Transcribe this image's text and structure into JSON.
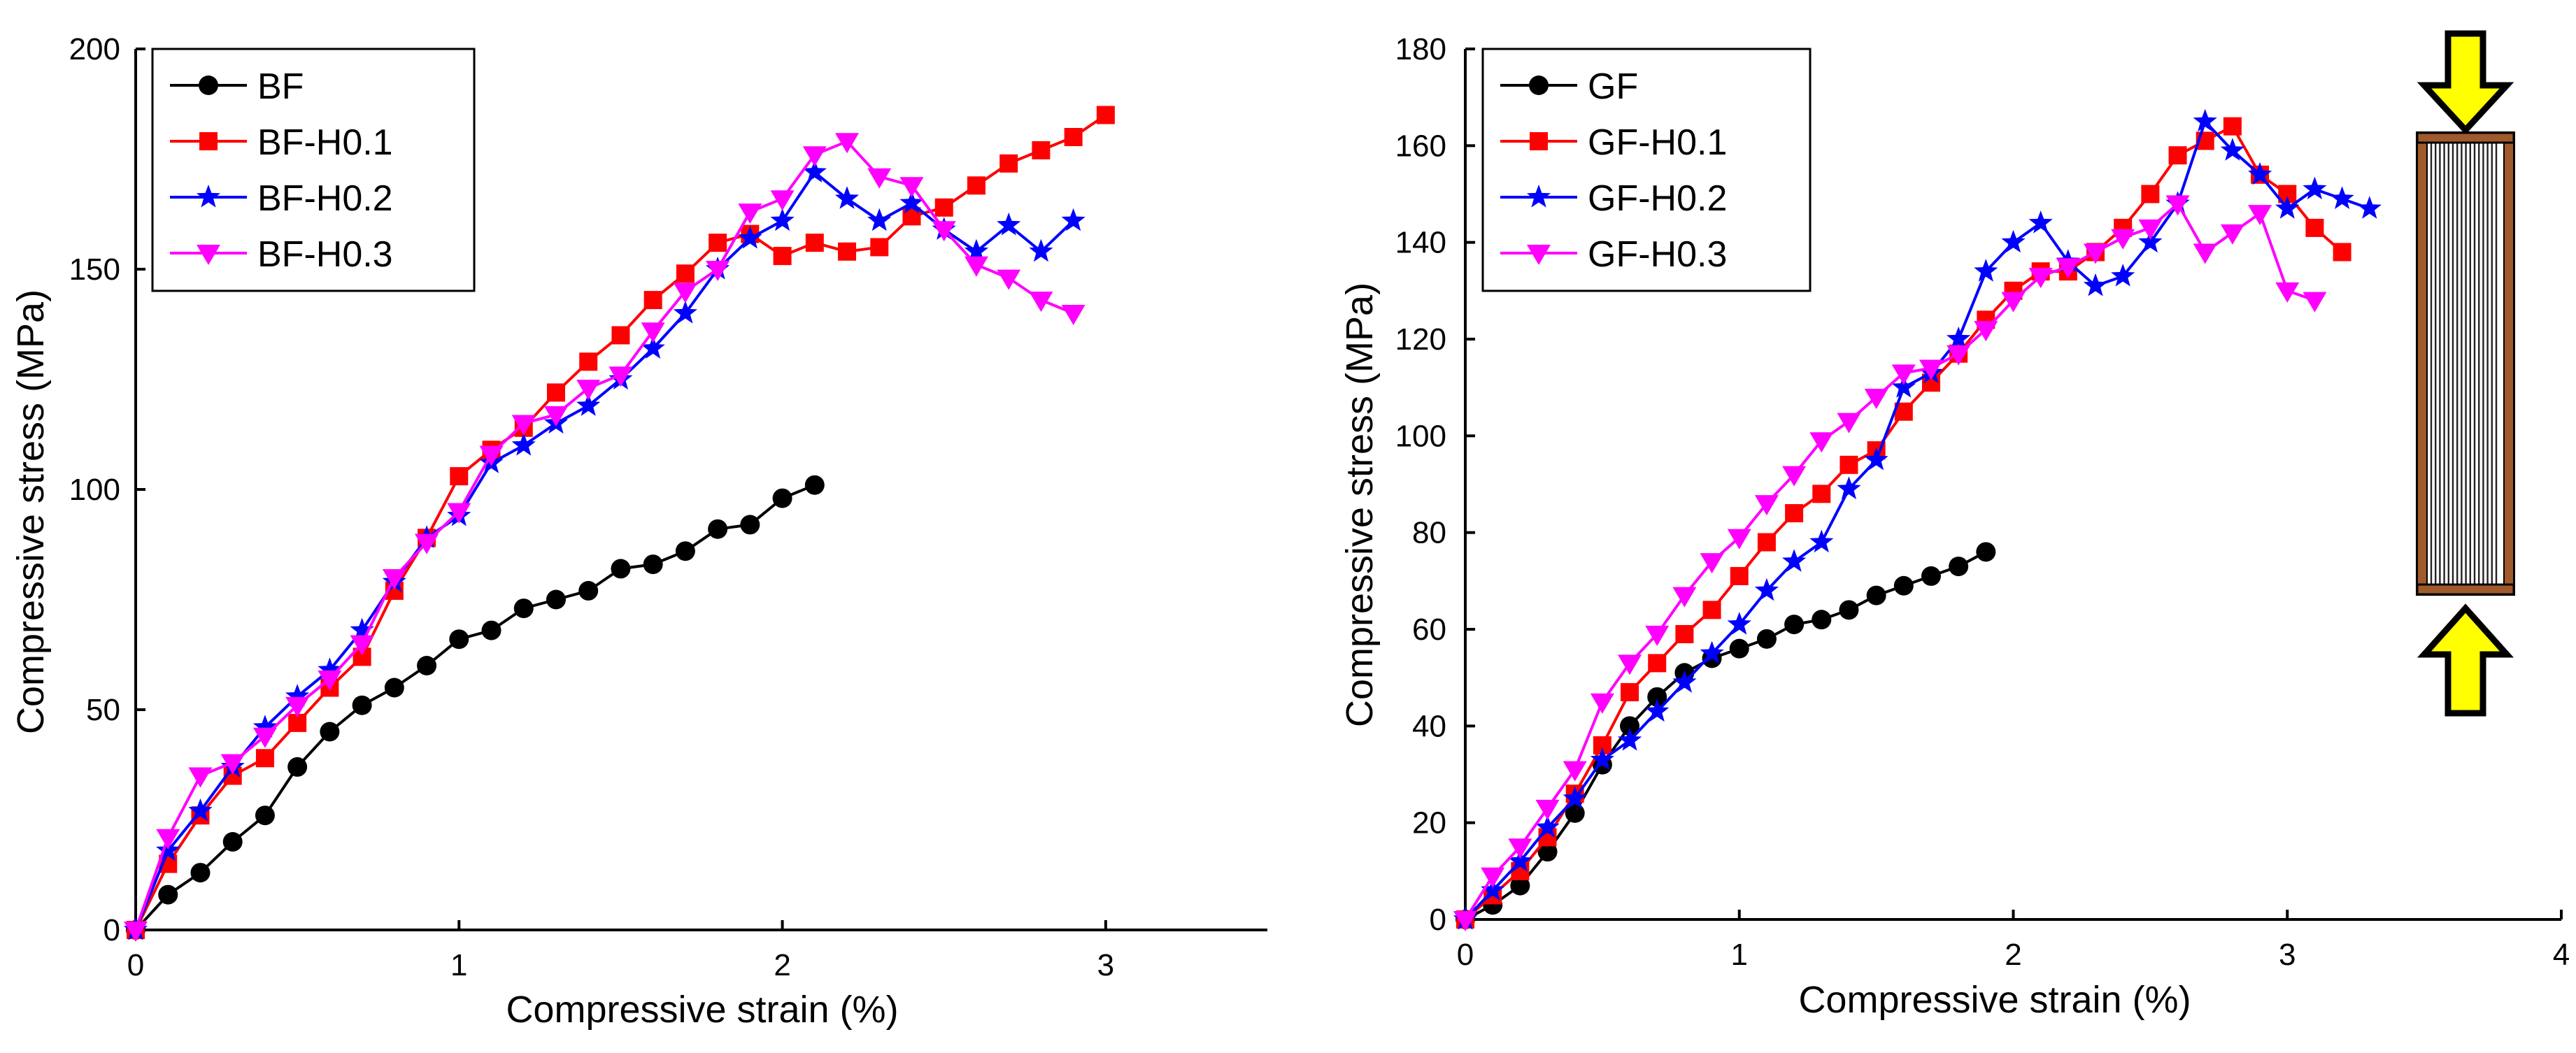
{
  "chart_data": [
    {
      "type": "line",
      "title": "",
      "xlabel": "Compressive strain (%)",
      "ylabel": "Compressive stress (MPa)",
      "xlim": [
        0,
        3.5
      ],
      "ylim": [
        0,
        200
      ],
      "xticks": [
        0,
        1,
        2,
        3
      ],
      "yticks": [
        0,
        50,
        100,
        150,
        200
      ],
      "xtick_labels": [
        "0",
        "1",
        "2",
        "3"
      ],
      "ytick_labels": [
        "0",
        "50",
        "100",
        "150",
        "200"
      ],
      "legend_position": "top-left",
      "series": [
        {
          "name": "BF",
          "color": "#000000",
          "marker": "circle",
          "x": [
            0,
            0.1,
            0.2,
            0.3,
            0.4,
            0.5,
            0.6,
            0.7,
            0.8,
            0.9,
            1.0,
            1.1,
            1.2,
            1.3,
            1.4,
            1.5,
            1.6,
            1.7,
            1.8,
            1.9,
            2.0,
            2.1
          ],
          "y": [
            0,
            8,
            13,
            20,
            26,
            37,
            45,
            51,
            55,
            60,
            66,
            68,
            73,
            75,
            77,
            82,
            83,
            86,
            91,
            92,
            98,
            101
          ]
        },
        {
          "name": "BF-H0.1",
          "color": "#ff0000",
          "marker": "square",
          "x": [
            0,
            0.1,
            0.2,
            0.3,
            0.4,
            0.5,
            0.6,
            0.7,
            0.8,
            0.9,
            1.0,
            1.1,
            1.2,
            1.3,
            1.4,
            1.5,
            1.6,
            1.7,
            1.8,
            1.9,
            2.0,
            2.1,
            2.2,
            2.3,
            2.4,
            2.5,
            2.6,
            2.7,
            2.8,
            2.9,
            3.0
          ],
          "y": [
            0,
            15,
            26,
            35,
            39,
            47,
            55,
            62,
            77,
            89,
            103,
            109,
            114,
            122,
            129,
            135,
            143,
            149,
            156,
            158,
            153,
            156,
            154,
            155,
            162,
            164,
            169,
            174,
            177,
            180,
            185
          ]
        },
        {
          "name": "BF-H0.2",
          "color": "#0000ff",
          "marker": "star",
          "x": [
            0,
            0.1,
            0.2,
            0.3,
            0.4,
            0.5,
            0.6,
            0.7,
            0.8,
            0.9,
            1.0,
            1.1,
            1.2,
            1.3,
            1.4,
            1.5,
            1.6,
            1.7,
            1.8,
            1.9,
            2.0,
            2.1,
            2.2,
            2.3,
            2.4,
            2.5,
            2.6,
            2.7,
            2.8,
            2.9
          ],
          "y": [
            0,
            18,
            27,
            37,
            46,
            53,
            59,
            68,
            79,
            89,
            94,
            106,
            110,
            115,
            119,
            125,
            132,
            140,
            150,
            157,
            161,
            172,
            166,
            161,
            165,
            159,
            154,
            160,
            154,
            161
          ]
        },
        {
          "name": "BF-H0.3",
          "color": "#ff00ff",
          "marker": "triangle-down",
          "x": [
            0,
            0.1,
            0.2,
            0.3,
            0.4,
            0.5,
            0.6,
            0.7,
            0.8,
            0.9,
            1.0,
            1.1,
            1.2,
            1.3,
            1.4,
            1.5,
            1.6,
            1.7,
            1.8,
            1.9,
            2.0,
            2.1,
            2.2,
            2.3,
            2.4,
            2.5,
            2.6,
            2.7,
            2.8,
            2.9
          ],
          "y": [
            0,
            21,
            35,
            38,
            44,
            51,
            57,
            65,
            80,
            88,
            95,
            108,
            115,
            117,
            123,
            126,
            136,
            145,
            150,
            163,
            166,
            176,
            179,
            171,
            169,
            159,
            151,
            148,
            143,
            140
          ]
        }
      ]
    },
    {
      "type": "line",
      "title": "",
      "xlabel": "Compressive strain (%)",
      "ylabel": "Compressive stress (MPa)",
      "xlim": [
        0,
        4
      ],
      "ylim": [
        0,
        180
      ],
      "xticks": [
        0,
        1,
        2,
        3,
        4
      ],
      "yticks": [
        0,
        20,
        40,
        60,
        80,
        100,
        120,
        140,
        160,
        180
      ],
      "xtick_labels": [
        "0",
        "1",
        "2",
        "3",
        "4"
      ],
      "ytick_labels": [
        "0",
        "20",
        "40",
        "60",
        "80",
        "100",
        "120",
        "140",
        "160",
        "180"
      ],
      "legend_position": "top-left",
      "series": [
        {
          "name": "GF",
          "color": "#000000",
          "marker": "circle",
          "x": [
            0,
            0.1,
            0.2,
            0.3,
            0.4,
            0.5,
            0.6,
            0.7,
            0.8,
            0.9,
            1.0,
            1.1,
            1.2,
            1.3,
            1.4,
            1.5,
            1.6,
            1.7,
            1.8,
            1.9
          ],
          "y": [
            0,
            3,
            7,
            14,
            22,
            32,
            40,
            46,
            51,
            54,
            56,
            58,
            61,
            62,
            64,
            67,
            69,
            71,
            73,
            76
          ]
        },
        {
          "name": "GF-H0.1",
          "color": "#ff0000",
          "marker": "square",
          "x": [
            0,
            0.1,
            0.2,
            0.3,
            0.4,
            0.5,
            0.6,
            0.7,
            0.8,
            0.9,
            1.0,
            1.1,
            1.2,
            1.3,
            1.4,
            1.5,
            1.6,
            1.7,
            1.8,
            1.9,
            2.0,
            2.1,
            2.2,
            2.3,
            2.4,
            2.5,
            2.6,
            2.7,
            2.8,
            2.9,
            3.0,
            3.1,
            3.2
          ],
          "y": [
            0,
            5,
            10,
            17,
            26,
            36,
            47,
            53,
            59,
            64,
            71,
            78,
            84,
            88,
            94,
            97,
            105,
            111,
            117,
            124,
            130,
            134,
            134,
            138,
            143,
            150,
            158,
            161,
            164,
            154,
            150,
            143,
            138
          ]
        },
        {
          "name": "GF-H0.2",
          "color": "#0000ff",
          "marker": "star",
          "x": [
            0,
            0.1,
            0.2,
            0.3,
            0.4,
            0.5,
            0.6,
            0.7,
            0.8,
            0.9,
            1.0,
            1.1,
            1.2,
            1.3,
            1.4,
            1.5,
            1.6,
            1.7,
            1.8,
            1.9,
            2.0,
            2.1,
            2.2,
            2.3,
            2.4,
            2.5,
            2.6,
            2.7,
            2.8,
            2.9,
            3.0,
            3.1,
            3.2,
            3.3
          ],
          "y": [
            0,
            6,
            12,
            19,
            25,
            33,
            37,
            43,
            49,
            55,
            61,
            68,
            74,
            78,
            89,
            95,
            110,
            113,
            120,
            134,
            140,
            144,
            136,
            131,
            133,
            140,
            148,
            165,
            159,
            154,
            147,
            151,
            149,
            147
          ]
        },
        {
          "name": "GF-H0.3",
          "color": "#ff00ff",
          "marker": "triangle-down",
          "x": [
            0,
            0.1,
            0.2,
            0.3,
            0.4,
            0.5,
            0.6,
            0.7,
            0.8,
            0.9,
            1.0,
            1.1,
            1.2,
            1.3,
            1.4,
            1.5,
            1.6,
            1.7,
            1.8,
            1.9,
            2.0,
            2.1,
            2.2,
            2.3,
            2.4,
            2.5,
            2.6,
            2.7,
            2.8,
            2.9,
            3.0,
            3.1
          ],
          "y": [
            0,
            9,
            15,
            23,
            31,
            45,
            53,
            59,
            67,
            74,
            79,
            86,
            92,
            99,
            103,
            108,
            113,
            114,
            117,
            122,
            128,
            133,
            135,
            138,
            141,
            143,
            148,
            138,
            142,
            146,
            130,
            128
          ]
        }
      ]
    }
  ],
  "inset": {
    "name": "compression-specimen-diagram",
    "arrow_color": "#ffff00",
    "specimen_color": "#a05a2c"
  }
}
